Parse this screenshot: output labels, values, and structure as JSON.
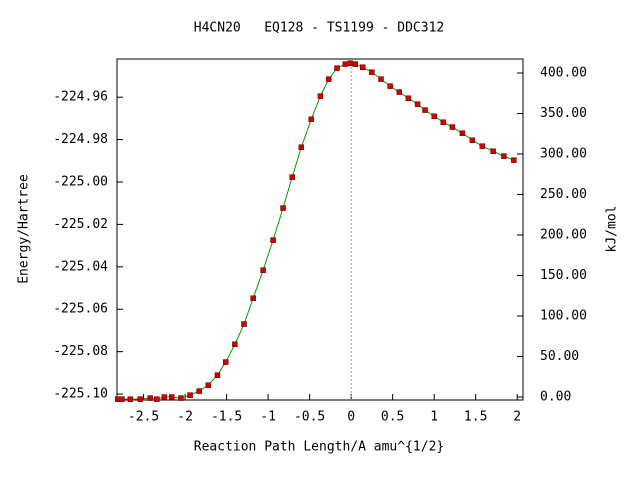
{
  "chart_data": {
    "type": "line",
    "title": "H4CN20   EQ128 - TS1199 - DDC312",
    "xlabel": "Reaction Path Length/A amu^{1/2}",
    "ylabel": "Energy/Hartree",
    "y2label": "kJ/mol",
    "xlim": [
      -2.82,
      2.07
    ],
    "ylim": [
      -225.1028,
      -224.942
    ],
    "y2lim": [
      -3.7,
      417.3
    ],
    "xticks": [
      -2.5,
      -2,
      -1.5,
      -1,
      -0.5,
      0,
      0.5,
      1,
      1.5,
      2
    ],
    "yticks": [
      {
        "value": -225.1,
        "label": "-225.10"
      },
      -225.08,
      -225.06,
      -225.04,
      -225.02,
      {
        "value": -225.0,
        "label": "-225.00"
      },
      -224.98,
      -224.96
    ],
    "y2ticks": [
      {
        "value": 0,
        "label": "0.00"
      },
      {
        "value": 50,
        "label": "50.00"
      },
      {
        "value": 100,
        "label": "100.00"
      },
      {
        "value": 150,
        "label": "150.00"
      },
      {
        "value": 200,
        "label": "200.00"
      },
      {
        "value": 250,
        "label": "250.00"
      },
      {
        "value": 300,
        "label": "300.00"
      },
      {
        "value": 350,
        "label": "350.00"
      },
      {
        "value": 400,
        "label": "400.00"
      }
    ],
    "vline_x": 0,
    "x": [
      -2.81,
      -2.76,
      -2.66,
      -2.54,
      -2.42,
      -2.34,
      -2.25,
      -2.16,
      -2.05,
      -1.94,
      -1.83,
      -1.72,
      -1.61,
      -1.51,
      -1.4,
      -1.29,
      -1.18,
      -1.06,
      -0.94,
      -0.82,
      -0.71,
      -0.6,
      -0.48,
      -0.37,
      -0.27,
      -0.17,
      -0.07,
      -0.01,
      0.05,
      0.14,
      0.25,
      0.36,
      0.47,
      0.58,
      0.69,
      0.8,
      0.89,
      1.0,
      1.11,
      1.22,
      1.34,
      1.46,
      1.58,
      1.71,
      1.84,
      1.96
    ],
    "series": [
      {
        "color": "#00a000",
        "marker_color": "#cc0000",
        "values": [
          -225.1024,
          -225.1024,
          -225.1024,
          -225.1024,
          -225.1019,
          -225.1024,
          -225.1014,
          -225.1014,
          -225.1019,
          -225.1005,
          -225.0986,
          -225.0958,
          -225.0911,
          -225.0849,
          -225.0765,
          -225.067,
          -225.0548,
          -225.0416,
          -225.0274,
          -225.0123,
          -224.9977,
          -224.9836,
          -224.9704,
          -224.9595,
          -224.9515,
          -224.9463,
          -224.9444,
          -224.944,
          -224.9444,
          -224.9459,
          -224.9482,
          -224.9515,
          -224.9548,
          -224.9576,
          -224.9605,
          -224.9633,
          -224.9661,
          -224.969,
          -224.9718,
          -224.9741,
          -224.977,
          -224.9803,
          -224.9831,
          -224.9855,
          -224.9878,
          -224.9897
        ]
      }
    ]
  }
}
